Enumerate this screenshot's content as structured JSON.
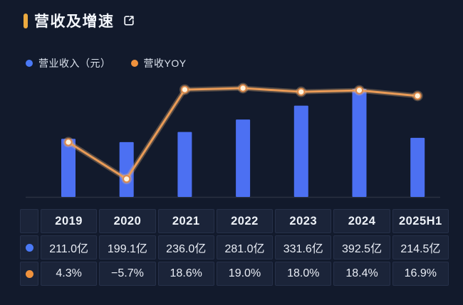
{
  "header": {
    "title": "营收及增速",
    "accent_color": "#ecaa3f"
  },
  "legend": [
    {
      "label": "营业收入（元）",
      "color": "#4a79f6"
    },
    {
      "label": "营收YOY",
      "color": "#f0923d"
    }
  ],
  "chart_data": {
    "type": "bar",
    "subtype": "bar-line-combo",
    "title": "营收及增速",
    "categories": [
      "2019",
      "2020",
      "2021",
      "2022",
      "2023",
      "2024",
      "2025H1"
    ],
    "series": [
      {
        "name": "营业收入（元）",
        "type": "bar",
        "unit": "亿",
        "values": [
          211.0,
          199.1,
          236.0,
          281.0,
          331.6,
          392.5,
          214.5
        ],
        "color": "#4c70f2"
      },
      {
        "name": "营收YOY",
        "type": "line",
        "unit": "%",
        "values": [
          4.3,
          -5.7,
          18.6,
          19.0,
          18.0,
          18.4,
          16.9
        ],
        "color": "#ea9b57",
        "point_fill": "#fff3dc",
        "point_stroke": "#dc8a4c",
        "glow_color": "rgba(245,190,130,0.30)"
      }
    ],
    "legend_position": "top-left",
    "grid": false,
    "axes_labels_visible": false,
    "baseline_color": "rgba(255,255,255,0.10)"
  },
  "table": {
    "columns": [
      "2019",
      "2020",
      "2021",
      "2022",
      "2023",
      "2024",
      "2025H1"
    ],
    "rows": [
      {
        "icon": "blue-dot",
        "color": "#4a79f6",
        "series": "营业收入（元）",
        "values": [
          "211.0亿",
          "199.1亿",
          "236.0亿",
          "281.0亿",
          "331.6亿",
          "392.5亿",
          "214.5亿"
        ]
      },
      {
        "icon": "orange-dot",
        "color": "#f0923d",
        "series": "营收YOY",
        "values": [
          "4.3%",
          "−5.7%",
          "18.6%",
          "19.0%",
          "18.0%",
          "18.4%",
          "16.9%"
        ]
      }
    ]
  }
}
